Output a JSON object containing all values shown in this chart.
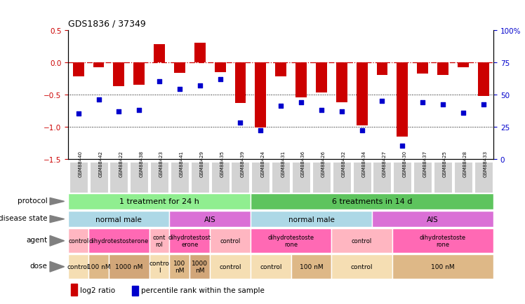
{
  "title": "GDS1836 / 37349",
  "samples": [
    "GSM88440",
    "GSM88442",
    "GSM88422",
    "GSM88438",
    "GSM88423",
    "GSM88441",
    "GSM88429",
    "GSM88435",
    "GSM88439",
    "GSM88424",
    "GSM88431",
    "GSM88436",
    "GSM88426",
    "GSM88432",
    "GSM88434",
    "GSM88427",
    "GSM88430",
    "GSM88437",
    "GSM88425",
    "GSM88428",
    "GSM88433"
  ],
  "log2_ratio": [
    -0.22,
    -0.08,
    -0.37,
    -0.35,
    0.28,
    -0.17,
    0.3,
    -0.16,
    -0.63,
    -1.01,
    -0.22,
    -0.55,
    -0.47,
    -0.62,
    -0.98,
    -0.2,
    -1.15,
    -0.18,
    -0.2,
    -0.08,
    -0.52
  ],
  "percentile": [
    35,
    46,
    37,
    38,
    60,
    54,
    57,
    62,
    28,
    22,
    41,
    44,
    38,
    37,
    22,
    45,
    10,
    44,
    42,
    36,
    42
  ],
  "ylim_left": [
    -1.5,
    0.5
  ],
  "ylim_right": [
    0,
    100
  ],
  "yticks_left": [
    -1.5,
    -1.0,
    -0.5,
    0.0,
    0.5
  ],
  "yticks_right": [
    0,
    25,
    50,
    75,
    100
  ],
  "ytick_right_labels": [
    "0",
    "25",
    "50",
    "75",
    "100%"
  ],
  "protocol_groups": [
    {
      "label": "1 treatment for 24 h",
      "start": 0,
      "end": 9,
      "color": "#90ee90"
    },
    {
      "label": "6 treatments in 14 d",
      "start": 9,
      "end": 21,
      "color": "#5ec45e"
    }
  ],
  "disease_groups": [
    {
      "label": "normal male",
      "start": 0,
      "end": 5,
      "color": "#add8e6"
    },
    {
      "label": "AIS",
      "start": 5,
      "end": 9,
      "color": "#da70d6"
    },
    {
      "label": "normal male",
      "start": 9,
      "end": 15,
      "color": "#add8e6"
    },
    {
      "label": "AIS",
      "start": 15,
      "end": 21,
      "color": "#da70d6"
    }
  ],
  "agent_groups": [
    {
      "label": "control",
      "start": 0,
      "end": 1,
      "color": "#ffb6c1"
    },
    {
      "label": "dihydrotestosterone",
      "start": 1,
      "end": 4,
      "color": "#ff69b4"
    },
    {
      "label": "cont\nrol",
      "start": 4,
      "end": 5,
      "color": "#ffb6c1"
    },
    {
      "label": "dihydrotestost\nerone",
      "start": 5,
      "end": 7,
      "color": "#ff69b4"
    },
    {
      "label": "control",
      "start": 7,
      "end": 9,
      "color": "#ffb6c1"
    },
    {
      "label": "dihydrotestoste\nrone",
      "start": 9,
      "end": 13,
      "color": "#ff69b4"
    },
    {
      "label": "control",
      "start": 13,
      "end": 16,
      "color": "#ffb6c1"
    },
    {
      "label": "dihydrotestoste\nrone",
      "start": 16,
      "end": 21,
      "color": "#ff69b4"
    }
  ],
  "dose_groups": [
    {
      "label": "control",
      "start": 0,
      "end": 1,
      "color": "#f5deb3"
    },
    {
      "label": "100 nM",
      "start": 1,
      "end": 2,
      "color": "#deb887"
    },
    {
      "label": "1000 nM",
      "start": 2,
      "end": 4,
      "color": "#d2a679"
    },
    {
      "label": "contro\nl",
      "start": 4,
      "end": 5,
      "color": "#f5deb3"
    },
    {
      "label": "100\nnM",
      "start": 5,
      "end": 6,
      "color": "#deb887"
    },
    {
      "label": "1000\nnM",
      "start": 6,
      "end": 7,
      "color": "#d2a679"
    },
    {
      "label": "control",
      "start": 7,
      "end": 9,
      "color": "#f5deb3"
    },
    {
      "label": "control",
      "start": 9,
      "end": 11,
      "color": "#f5deb3"
    },
    {
      "label": "100 nM",
      "start": 11,
      "end": 13,
      "color": "#deb887"
    },
    {
      "label": "control",
      "start": 13,
      "end": 16,
      "color": "#f5deb3"
    },
    {
      "label": "100 nM",
      "start": 16,
      "end": 21,
      "color": "#deb887"
    }
  ],
  "row_labels": [
    "protocol",
    "disease state",
    "agent",
    "dose"
  ],
  "bar_color": "#cc0000",
  "dot_color": "#0000cc",
  "line_color": "#cc0000",
  "bg_color": "#ffffff",
  "xticklabel_bg": "#d3d3d3"
}
